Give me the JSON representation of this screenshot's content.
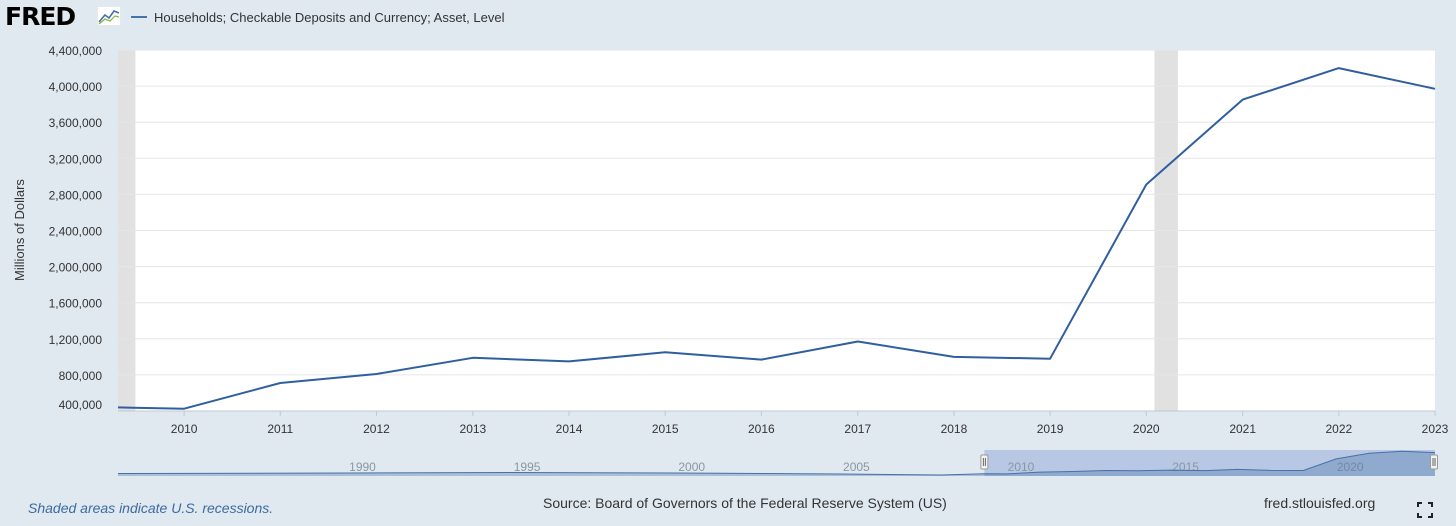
{
  "header": {
    "logo_text": "FRED",
    "legend_label": "Households; Checkable Deposits and Currency; Asset, Level",
    "legend_color": "#4572a7"
  },
  "chart_data": {
    "type": "line",
    "title": "",
    "xlabel": "",
    "ylabel": "Millions of Dollars",
    "ylim": [
      400000,
      4400000
    ],
    "xlim": [
      "2009-04-25",
      "2023-01-01"
    ],
    "y_ticks": [
      "400,000",
      "800,000",
      "1,200,000",
      "1,600,000",
      "2,000,000",
      "2,400,000",
      "2,800,000",
      "3,200,000",
      "3,600,000",
      "4,000,000",
      "4,400,000"
    ],
    "x_ticks": [
      "2010",
      "2011",
      "2012",
      "2013",
      "2014",
      "2015",
      "2016",
      "2017",
      "2018",
      "2019",
      "2020",
      "2021",
      "2022",
      "2023"
    ],
    "grid": true,
    "series": [
      {
        "name": "Households; Checkable Deposits and Currency; Asset, Level",
        "color": "#2f5f9e",
        "points": [
          {
            "x": "2009-04-25",
            "y": 440000
          },
          {
            "x": "2010-01-01",
            "y": 425000
          },
          {
            "x": "2011-01-01",
            "y": 710000
          },
          {
            "x": "2012-01-01",
            "y": 810000
          },
          {
            "x": "2013-01-01",
            "y": 990000
          },
          {
            "x": "2014-01-01",
            "y": 950000
          },
          {
            "x": "2015-01-01",
            "y": 1050000
          },
          {
            "x": "2016-01-01",
            "y": 970000
          },
          {
            "x": "2017-01-01",
            "y": 1170000
          },
          {
            "x": "2018-01-01",
            "y": 1000000
          },
          {
            "x": "2019-01-01",
            "y": 980000
          },
          {
            "x": "2020-01-01",
            "y": 2910000
          },
          {
            "x": "2021-01-01",
            "y": 3850000
          },
          {
            "x": "2022-01-01",
            "y": 4200000
          },
          {
            "x": "2023-01-01",
            "y": 3970000
          }
        ]
      }
    ],
    "recessions": [
      {
        "start": "2009-04-25",
        "end": "2009-06-30"
      },
      {
        "start": "2020-02-01",
        "end": "2020-04-30"
      }
    ],
    "navigator": {
      "range": [
        "1983-01-01",
        "2023-01-01"
      ],
      "selection": [
        "2009-04-25",
        "2023-01-01"
      ],
      "labels": [
        "1990",
        "1995",
        "2000",
        "2005",
        "2010",
        "2015",
        "2020"
      ]
    }
  },
  "footer": {
    "note": "Shaded areas indicate U.S. recessions.",
    "source": "Source: Board of Governors of the Federal Reserve System (US)",
    "url": "fred.stlouisfed.org"
  }
}
